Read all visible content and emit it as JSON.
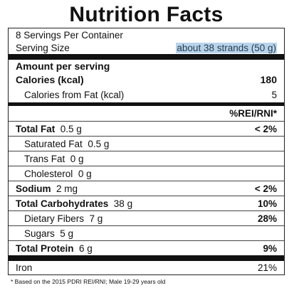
{
  "title": "Nutrition Facts",
  "servings": "8 Servings Per Container",
  "serving_size_label": "Serving Size",
  "serving_size_value": "about 38 strands (50 g)",
  "amount_per_serving": "Amount per serving",
  "calories_label": "Calories (kcal)",
  "calories_value": "180",
  "cal_fat_label": "Calories from Fat (kcal)",
  "cal_fat_value": "5",
  "rei_header": "%REI/RNI*",
  "nutrients": [
    {
      "name": "Total Fat",
      "amount": "0.5 g",
      "pct": "< 2%"
    },
    {
      "name": "Saturated Fat",
      "amount": "0.5 g",
      "pct": ""
    },
    {
      "name": "Trans Fat",
      "amount": "0 g",
      "pct": ""
    },
    {
      "name": "Cholesterol",
      "amount": "0 g",
      "pct": ""
    },
    {
      "name": "Sodium",
      "amount": "2 mg",
      "pct": "< 2%"
    },
    {
      "name": "Total Carbohydrates",
      "amount": "38 g",
      "pct": "10%"
    },
    {
      "name": "Dietary Fibers",
      "amount": "7 g",
      "pct": "28%"
    },
    {
      "name": "Sugars",
      "amount": "5 g",
      "pct": ""
    },
    {
      "name": "Total Protein",
      "amount": "6 g",
      "pct": "9%"
    }
  ],
  "iron_label": "Iron",
  "iron_value": "21%",
  "footnote": "* Based on the 2015 PDRI REI/RNI; Male 19-29 years old"
}
